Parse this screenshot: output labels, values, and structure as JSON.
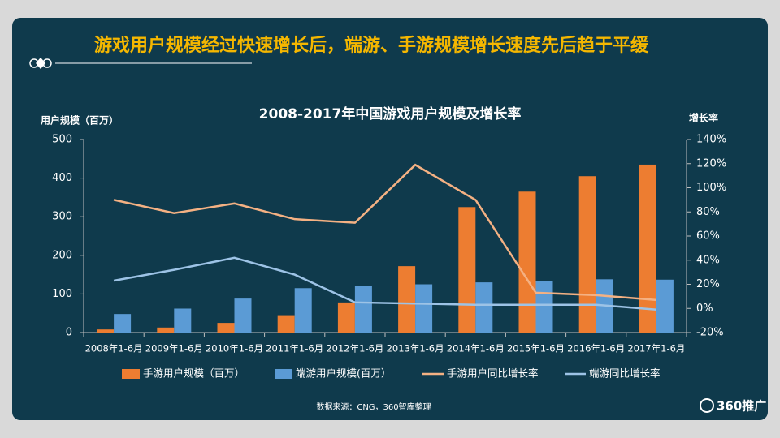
{
  "header_title": "游戏用户规模经过快速增长后，端游、手游规模增长速度先后趋于平缓",
  "source": "数据来源：CNG，360智库整理",
  "logo": "360推广",
  "chart_data": {
    "type": "combo",
    "title": "2008-2017年中国游戏用户规模及增长率",
    "y_label": "用户规模（百万）",
    "y2_label": "增长率",
    "categories": [
      "2008年1-6月",
      "2009年1-6月",
      "2010年1-6月",
      "2011年1-6月",
      "2012年1-6月",
      "2013年1-6月",
      "2014年1-6月",
      "2015年1-6月",
      "2016年1-6月",
      "2017年1-6月"
    ],
    "series": [
      {
        "name": "手游用户规模（百万）",
        "type": "bar",
        "color": "#ed7d31",
        "values": [
          8,
          13,
          25,
          45,
          78,
          172,
          325,
          365,
          405,
          435
        ]
      },
      {
        "name": "端游用户规模(百万）",
        "type": "bar",
        "color": "#5b9bd5",
        "values": [
          48,
          62,
          88,
          115,
          120,
          125,
          130,
          133,
          138,
          137
        ]
      },
      {
        "name": "手游用户同比增长率",
        "type": "line",
        "axis": "y2",
        "color": "#f4b183",
        "values": [
          90,
          79,
          87,
          74,
          71,
          119,
          90,
          13,
          11,
          7
        ]
      },
      {
        "name": "端游同比增长率",
        "type": "line",
        "axis": "y2",
        "color": "#9dc3e6",
        "values": [
          23,
          32,
          42,
          28,
          5,
          4,
          3,
          3,
          3,
          -1
        ]
      }
    ],
    "ylim": [
      0,
      500
    ],
    "yticks": [
      0,
      100,
      200,
      300,
      400,
      500
    ],
    "y2lim": [
      -20,
      140
    ],
    "y2ticks": [
      {
        "value": -20,
        "label": "-20%"
      },
      {
        "value": 0,
        "label": "0%"
      },
      {
        "value": 20,
        "label": "20%"
      },
      {
        "value": 40,
        "label": "40%"
      },
      {
        "value": 60,
        "label": "60%"
      },
      {
        "value": 80,
        "label": "80%"
      },
      {
        "value": 100,
        "label": "100%"
      },
      {
        "value": 120,
        "label": "120%"
      },
      {
        "value": 140,
        "label": "140%"
      }
    ],
    "legend": "bottom"
  }
}
